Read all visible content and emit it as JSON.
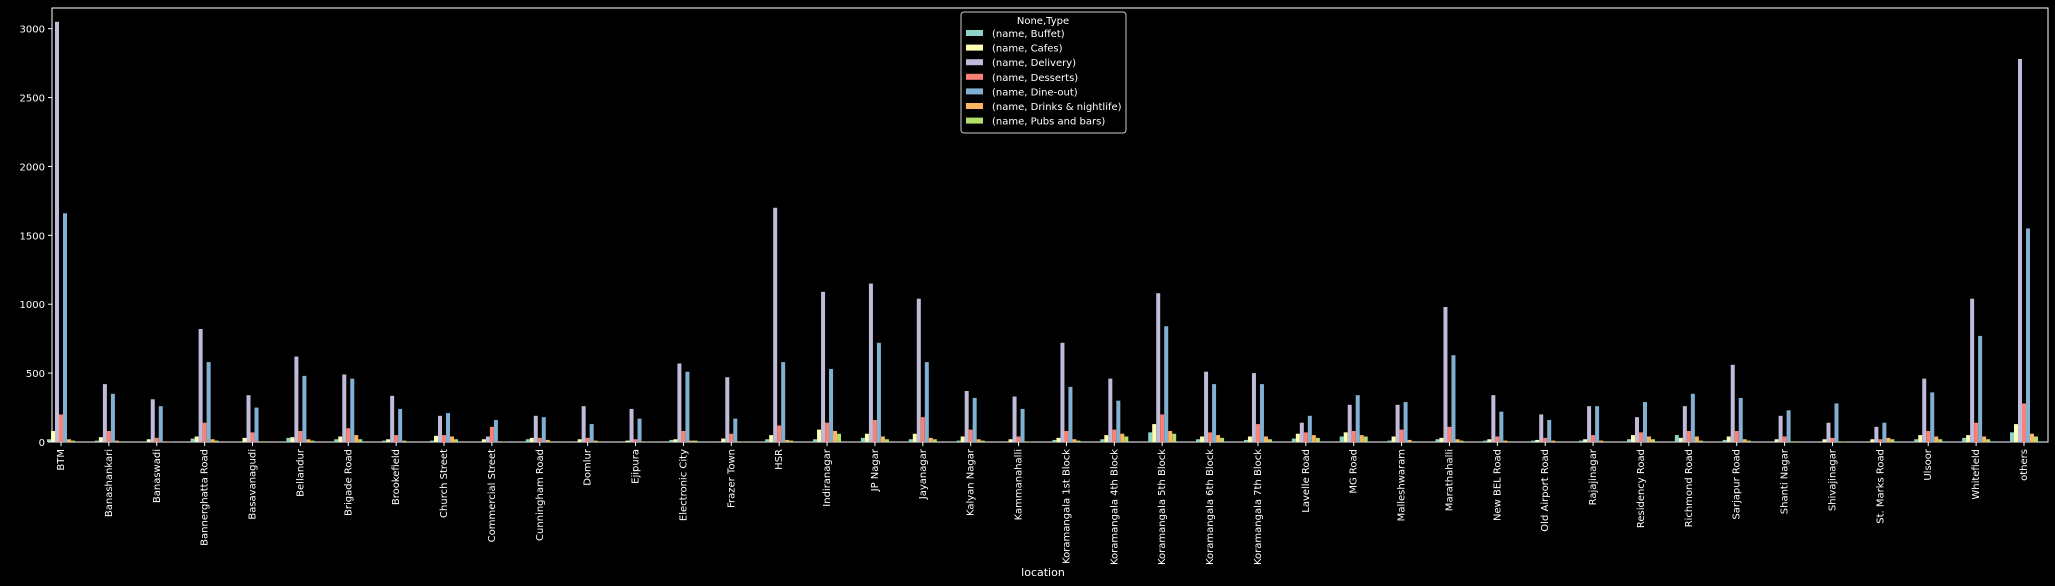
{
  "chart_data": {
    "type": "bar",
    "title": "",
    "xlabel": "location",
    "ylabel": "",
    "ylim": [
      0,
      3150
    ],
    "yticks": [
      0,
      500,
      1000,
      1500,
      2000,
      2500,
      3000
    ],
    "grid": false,
    "legend": {
      "title": "None,Type",
      "placement": "top-center"
    },
    "categories": [
      "BTM",
      "Banashankari",
      "Banaswadi",
      "Bannerghatta Road",
      "Basavanagudi",
      "Bellandur",
      "Brigade Road",
      "Brookefield",
      "Church Street",
      "Commercial Street",
      "Cunningham Road",
      "Domlur",
      "Ejipura",
      "Electronic City",
      "Frazer Town",
      "HSR",
      "Indiranagar",
      "JP Nagar",
      "Jayanagar",
      "Kalyan Nagar",
      "Kammanahalli",
      "Koramangala 1st Block",
      "Koramangala 4th Block",
      "Koramangala 5th Block",
      "Koramangala 6th Block",
      "Koramangala 7th Block",
      "Lavelle Road",
      "MG Road",
      "Malleshwaram",
      "Marathahalli",
      "New BEL Road",
      "Old Airport Road",
      "Rajajinagar",
      "Residency Road",
      "Richmond Road",
      "Sarjapur Road",
      "Shanti Nagar",
      "Shivajinagar",
      "St. Marks Road",
      "Ulsoor",
      "Whitefield",
      "others"
    ],
    "series": [
      {
        "name": "(name, Buffet)",
        "color": "#8dd3c7",
        "values": [
          20,
          10,
          5,
          25,
          5,
          30,
          20,
          10,
          10,
          5,
          20,
          5,
          5,
          15,
          5,
          20,
          20,
          30,
          20,
          10,
          5,
          15,
          20,
          70,
          20,
          15,
          25,
          40,
          10,
          20,
          10,
          10,
          10,
          20,
          50,
          15,
          5,
          5,
          5,
          20,
          30,
          70
        ]
      },
      {
        "name": "(name, Cafes)",
        "color": "#feffb3",
        "values": [
          80,
          35,
          20,
          40,
          30,
          35,
          40,
          20,
          45,
          20,
          30,
          20,
          10,
          20,
          25,
          50,
          90,
          60,
          60,
          40,
          20,
          30,
          50,
          130,
          40,
          40,
          60,
          70,
          40,
          30,
          20,
          15,
          20,
          50,
          30,
          40,
          20,
          20,
          20,
          50,
          50,
          130
        ]
      },
      {
        "name": "(name, Delivery)",
        "color": "#bfbbd9",
        "values": [
          3050,
          420,
          310,
          820,
          340,
          620,
          490,
          335,
          190,
          40,
          190,
          260,
          240,
          570,
          470,
          1700,
          1090,
          1150,
          1040,
          370,
          330,
          720,
          460,
          1080,
          510,
          500,
          140,
          270,
          270,
          980,
          340,
          200,
          260,
          180,
          260,
          560,
          190,
          140,
          110,
          460,
          1040,
          2780
        ]
      },
      {
        "name": "(name, Desserts)",
        "color": "#fa8174",
        "values": [
          200,
          80,
          30,
          140,
          70,
          80,
          100,
          50,
          50,
          110,
          30,
          30,
          20,
          80,
          60,
          120,
          140,
          160,
          180,
          90,
          40,
          80,
          90,
          200,
          70,
          130,
          70,
          80,
          90,
          110,
          40,
          30,
          50,
          70,
          80,
          80,
          40,
          30,
          20,
          80,
          140,
          280
        ]
      },
      {
        "name": "(name, Dine-out)",
        "color": "#81b1d2",
        "values": [
          1660,
          350,
          260,
          580,
          250,
          480,
          460,
          240,
          210,
          160,
          180,
          130,
          170,
          510,
          170,
          580,
          530,
          720,
          580,
          320,
          240,
          400,
          300,
          840,
          420,
          420,
          190,
          340,
          290,
          630,
          220,
          160,
          260,
          290,
          350,
          320,
          230,
          280,
          140,
          360,
          770,
          1550
        ]
      },
      {
        "name": "(name, Drinks & nightlife)",
        "color": "#fdb462",
        "values": [
          20,
          10,
          5,
          20,
          5,
          20,
          50,
          10,
          40,
          5,
          15,
          10,
          5,
          10,
          5,
          15,
          80,
          40,
          30,
          20,
          5,
          20,
          60,
          80,
          50,
          40,
          50,
          50,
          15,
          20,
          10,
          10,
          10,
          40,
          40,
          20,
          5,
          5,
          30,
          40,
          40,
          60
        ]
      },
      {
        "name": "(name, Pubs and bars)",
        "color": "#b3de69",
        "values": [
          10,
          5,
          2,
          10,
          5,
          10,
          20,
          5,
          20,
          2,
          5,
          5,
          2,
          10,
          2,
          10,
          60,
          20,
          20,
          10,
          2,
          10,
          40,
          60,
          30,
          20,
          30,
          40,
          5,
          10,
          5,
          5,
          5,
          20,
          10,
          10,
          5,
          2,
          20,
          20,
          20,
          40
        ]
      }
    ]
  }
}
